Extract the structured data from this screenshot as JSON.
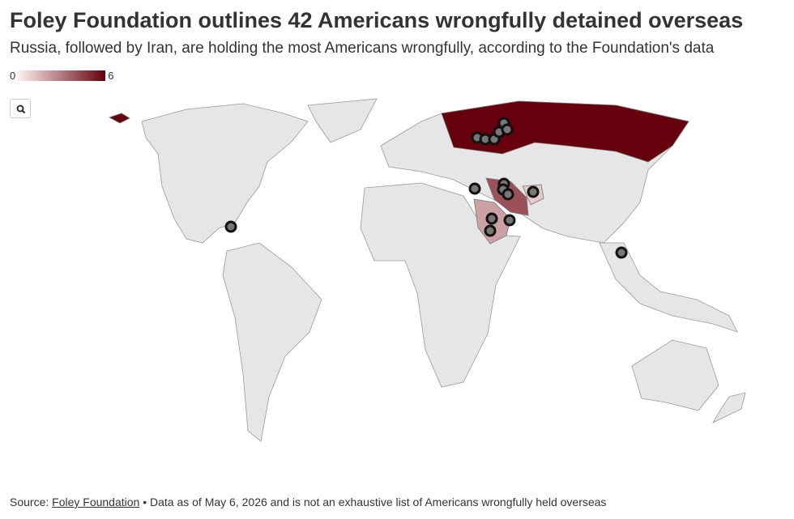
{
  "title": "Foley Foundation outlines 42 Americans wrongfully detained overseas",
  "subtitle": "Russia, followed by Iran, are holding the most Americans wrongfully, according to the Foundation's data",
  "legend": {
    "min": 0,
    "max": 6,
    "colors": [
      "#fff2ef",
      "#67000d"
    ]
  },
  "choropleth": {
    "values": [
      6,
      4,
      2,
      1
    ]
  },
  "footer": {
    "source_label": "Source:",
    "source_link": "Foley Foundation",
    "note": "• Data as of May 6, 2026 and is not an exhaustive list of Americans wrongfully held overseas"
  }
}
